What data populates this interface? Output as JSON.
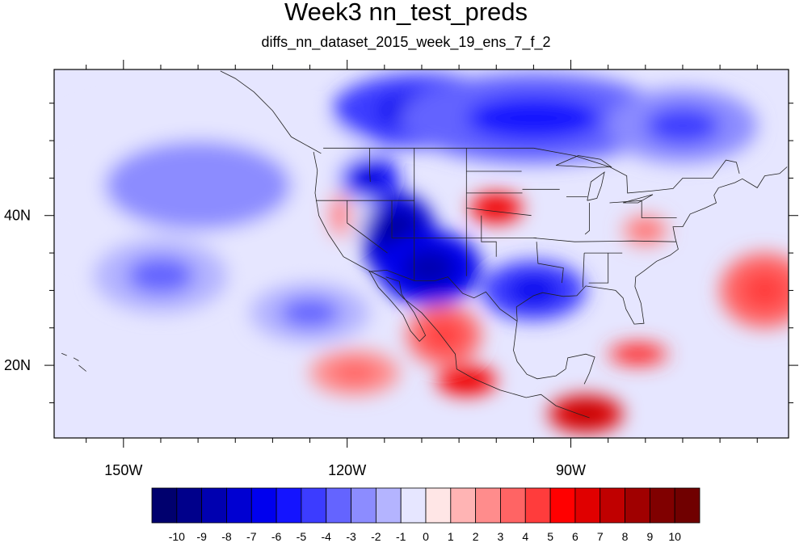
{
  "chart_data": {
    "type": "heatmap",
    "title": "Week3 nn_test_preds",
    "subtitle": "diffs_nn_dataset_2015_week_19_ens_7_f_2",
    "x_ticks": [
      {
        "lon": -150,
        "label": "150W"
      },
      {
        "lon": -120,
        "label": "120W"
      },
      {
        "lon": -90,
        "label": "90W"
      }
    ],
    "y_ticks": [
      {
        "lat": 40,
        "label": "40N"
      },
      {
        "lat": 20,
        "label": "20N"
      }
    ],
    "xlim": [
      -159.3,
      -60.8
    ],
    "ylim": [
      10.3,
      59.5
    ],
    "minor_x_step": 5,
    "minor_y_step": 5,
    "colorbar": {
      "levels": [
        -10,
        -9,
        -8,
        -7,
        -6,
        -5,
        -4,
        -3,
        -2,
        -1,
        0,
        1,
        2,
        3,
        4,
        5,
        6,
        7,
        8,
        9,
        10
      ],
      "colors": [
        "#00006e",
        "#00008b",
        "#0000b0",
        "#0000d2",
        "#0000ee",
        "#1414ff",
        "#3c3cff",
        "#6464ff",
        "#8c8cff",
        "#b4b4ff",
        "#e6e6ff",
        "#ffe6e6",
        "#ffb4b4",
        "#ff8c8c",
        "#ff6464",
        "#ff3c3c",
        "#ff0000",
        "#e00000",
        "#c00000",
        "#a00000",
        "#800000",
        "#700000"
      ]
    },
    "regions": [
      {
        "lon": -140,
        "lat": 44,
        "rx": 25,
        "ry": 12,
        "value": -1
      },
      {
        "lon": -145,
        "lat": 32,
        "rx": 9,
        "ry": 5,
        "value": -2
      },
      {
        "lon": -125,
        "lat": 27,
        "rx": 8,
        "ry": 4,
        "value": -2
      },
      {
        "lon": -110,
        "lat": 54,
        "rx": 12,
        "ry": 5,
        "value": -5
      },
      {
        "lon": -95,
        "lat": 53,
        "rx": 18,
        "ry": 6,
        "value": -4
      },
      {
        "lon": -75,
        "lat": 52,
        "rx": 10,
        "ry": 5,
        "value": -3
      },
      {
        "lon": -113,
        "lat": 37,
        "rx": 5,
        "ry": 6,
        "value": -8
      },
      {
        "lon": -109,
        "lat": 33,
        "rx": 7,
        "ry": 5,
        "value": -7
      },
      {
        "lon": -95,
        "lat": 30,
        "rx": 7,
        "ry": 4,
        "value": -5
      },
      {
        "lon": -117,
        "lat": 45,
        "rx": 4,
        "ry": 3,
        "value": -6
      },
      {
        "lon": -100,
        "lat": 41,
        "rx": 3.5,
        "ry": 2,
        "value": 5
      },
      {
        "lon": -107,
        "lat": 24,
        "rx": 5,
        "ry": 4,
        "value": 3
      },
      {
        "lon": -104,
        "lat": 18,
        "rx": 4,
        "ry": 2,
        "value": 5
      },
      {
        "lon": -119,
        "lat": 19,
        "rx": 6,
        "ry": 3,
        "value": 2
      },
      {
        "lon": -88,
        "lat": 13.5,
        "rx": 5,
        "ry": 2.5,
        "value": 6
      },
      {
        "lon": -81,
        "lat": 21.5,
        "rx": 4,
        "ry": 1.5,
        "value": 4
      },
      {
        "lon": -80,
        "lat": 38,
        "rx": 3,
        "ry": 2,
        "value": 2
      },
      {
        "lon": -64,
        "lat": 30,
        "rx": 6,
        "ry": 5,
        "value": 3
      },
      {
        "lon": -121,
        "lat": 40,
        "rx": 1.5,
        "ry": 3,
        "value": 2
      }
    ]
  }
}
